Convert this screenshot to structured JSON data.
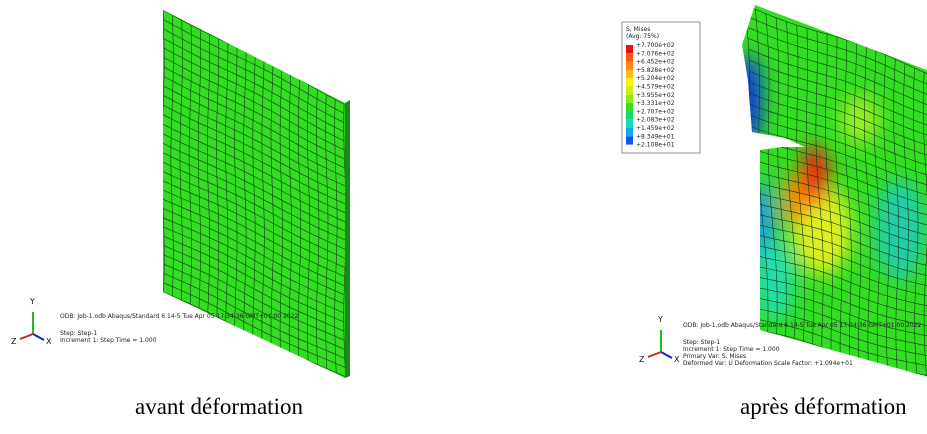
{
  "panels": [
    {
      "caption": "avant déformation",
      "triad": {
        "y": "Y",
        "z": "Z",
        "x": "X"
      },
      "info": [
        "ODB: Job-1.odb    Abaqus/Standard 6.14-5    Tue Apr 05 17:34:36 GMT+01:00 2022",
        "Step: Step-1",
        "Increment    1: Step Time =    1.000"
      ]
    },
    {
      "caption": "après déformation",
      "triad": {
        "y": "Y",
        "z": "Z",
        "x": "X"
      },
      "info": [
        "ODB: Job-1.odb    Abaqus/Standard 6.14-5    Tue Apr 05 17:34:36 GMT+01:00 2022",
        "Step: Step-1",
        "Increment    1: Step Time =    1.000",
        "Primary Var: S, Mises",
        "Deformed Var: U    Deformation Scale Factor: +1.094e+01"
      ],
      "legend": {
        "title": "S, Mises",
        "subtitle": "(Avg: 75%)",
        "labels": [
          "+7.700e+02",
          "+7.076e+02",
          "+6.452e+02",
          "+5.828e+02",
          "+5.204e+02",
          "+4.579e+02",
          "+3.955e+02",
          "+3.331e+02",
          "+2.707e+02",
          "+2.083e+02",
          "+1.459e+02",
          "+8.349e+01",
          "+2.108e+01"
        ]
      }
    }
  ]
}
